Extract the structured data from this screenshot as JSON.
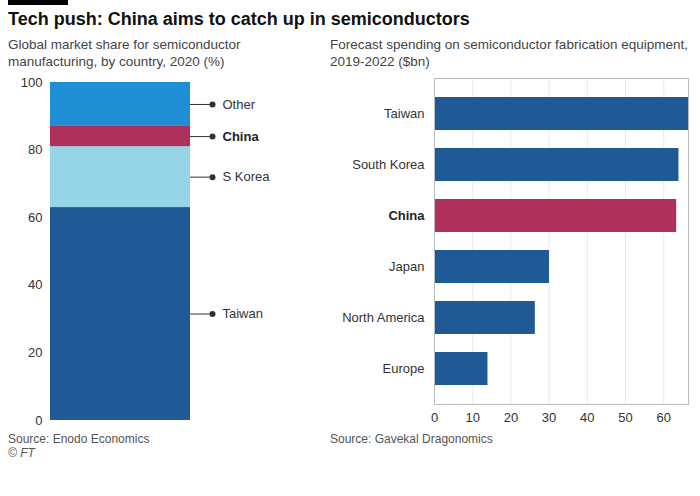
{
  "title": "Tech push: China aims to catch up in semiconductors",
  "credit": "© FT",
  "chart_data": [
    {
      "type": "bar",
      "subtitle": "Global market share for semiconductor manufacturing, by country, 2020 (%)",
      "stacked": true,
      "categories": [
        null
      ],
      "series": [
        {
          "name": "Taiwan",
          "color": "#1f5a96",
          "values": [
            63
          ]
        },
        {
          "name": "S Korea",
          "color": "#96d4e8",
          "values": [
            18
          ]
        },
        {
          "name": "China",
          "color": "#b0305c",
          "values": [
            6
          ]
        },
        {
          "name": "Other",
          "color": "#1e8fd5",
          "values": [
            13
          ]
        }
      ],
      "ylim": [
        0,
        100
      ],
      "yticks": [
        0,
        20,
        40,
        60,
        80,
        100
      ],
      "grid": false,
      "tick_labels": "y",
      "source": "Source: Enodo Economics"
    },
    {
      "type": "bar",
      "orientation": "horizontal",
      "subtitle": "Forecast spending on semiconductor fabrication equipment, 2019-2022 ($bn)",
      "categories": [
        "Taiwan",
        "South Korea",
        "China",
        "Japan",
        "North America",
        "Europe"
      ],
      "values": [
        66.5,
        64,
        63.4,
        30.1,
        26.4,
        14
      ],
      "colors": [
        "#1f5a96",
        "#1f5a96",
        "#b0305c",
        "#1f5a96",
        "#1f5a96",
        "#1f5a96"
      ],
      "xlim": [
        0,
        66.5
      ],
      "xticks": [
        0,
        10,
        20,
        30,
        40,
        50,
        60
      ],
      "grid": true,
      "source": "Source: Gavekal Dragonomics"
    }
  ]
}
